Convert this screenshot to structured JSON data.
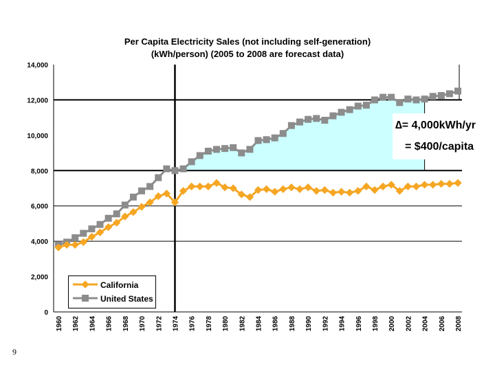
{
  "chart_data": {
    "type": "line",
    "title": "Per Capita Electricity Sales (not including self-generation)",
    "subtitle": "(kWh/person) (2005 to 2008 are forecast data)",
    "xlabel": "",
    "ylabel": "",
    "ylim": [
      0,
      14000
    ],
    "yticks": [
      "0",
      "2,000",
      "4,000",
      "6,000",
      "8,000",
      "10,000",
      "12,000",
      "14,000"
    ],
    "x": [
      1960,
      1961,
      1962,
      1963,
      1964,
      1965,
      1966,
      1967,
      1968,
      1969,
      1970,
      1971,
      1972,
      1973,
      1974,
      1975,
      1976,
      1977,
      1978,
      1979,
      1980,
      1981,
      1982,
      1983,
      1984,
      1985,
      1986,
      1987,
      1988,
      1989,
      1990,
      1991,
      1992,
      1993,
      1994,
      1995,
      1996,
      1997,
      1998,
      1999,
      2000,
      2001,
      2002,
      2003,
      2004,
      2005,
      2006,
      2007,
      2008
    ],
    "xticks": [
      "1960",
      "1962",
      "1964",
      "1966",
      "1968",
      "1970",
      "1972",
      "1974",
      "1976",
      "1978",
      "1980",
      "1982",
      "1984",
      "1986",
      "1988",
      "1990",
      "1992",
      "1994",
      "1996",
      "1998",
      "2000",
      "2002",
      "2004",
      "2006",
      "2008"
    ],
    "series": [
      {
        "name": "California",
        "color": "#F5A623",
        "marker": "diamond",
        "values": [
          3650,
          3800,
          3800,
          3950,
          4250,
          4500,
          4800,
          5050,
          5400,
          5650,
          5950,
          6200,
          6550,
          6700,
          6200,
          6850,
          7100,
          7100,
          7100,
          7300,
          7050,
          7000,
          6650,
          6500,
          6900,
          6950,
          6800,
          6950,
          7050,
          6950,
          7050,
          6850,
          6900,
          6750,
          6800,
          6750,
          6850,
          7100,
          6900,
          7100,
          7200,
          6850,
          7100,
          7100,
          7200,
          7200,
          7250,
          7250,
          7300
        ]
      },
      {
        "name": "United States",
        "color": "#8C8C8C",
        "marker": "square",
        "values": [
          3800,
          3950,
          4200,
          4450,
          4700,
          4950,
          5300,
          5550,
          6050,
          6500,
          6850,
          7100,
          7600,
          8100,
          8000,
          8100,
          8500,
          8850,
          9100,
          9200,
          9250,
          9300,
          9000,
          9200,
          9700,
          9750,
          9850,
          10100,
          10550,
          10750,
          10900,
          10950,
          10850,
          11100,
          11300,
          11450,
          11650,
          11700,
          12000,
          12150,
          12150,
          11850,
          12050,
          12000,
          12050,
          12200,
          12250,
          12350,
          12500
        ]
      }
    ],
    "shaded_region": {
      "from_year": 1974,
      "to_year": 2004,
      "baseline": 8000,
      "color": "#CCFFFF"
    },
    "reference_lines": {
      "vertical_year": 1974,
      "horizontal": [
        8000,
        12000
      ]
    },
    "annotation": {
      "line1": "∆= 4,000kWh/yr",
      "line2": "= $400/capita"
    },
    "legend": "bottom-left",
    "grid": true
  },
  "page_number": "9"
}
